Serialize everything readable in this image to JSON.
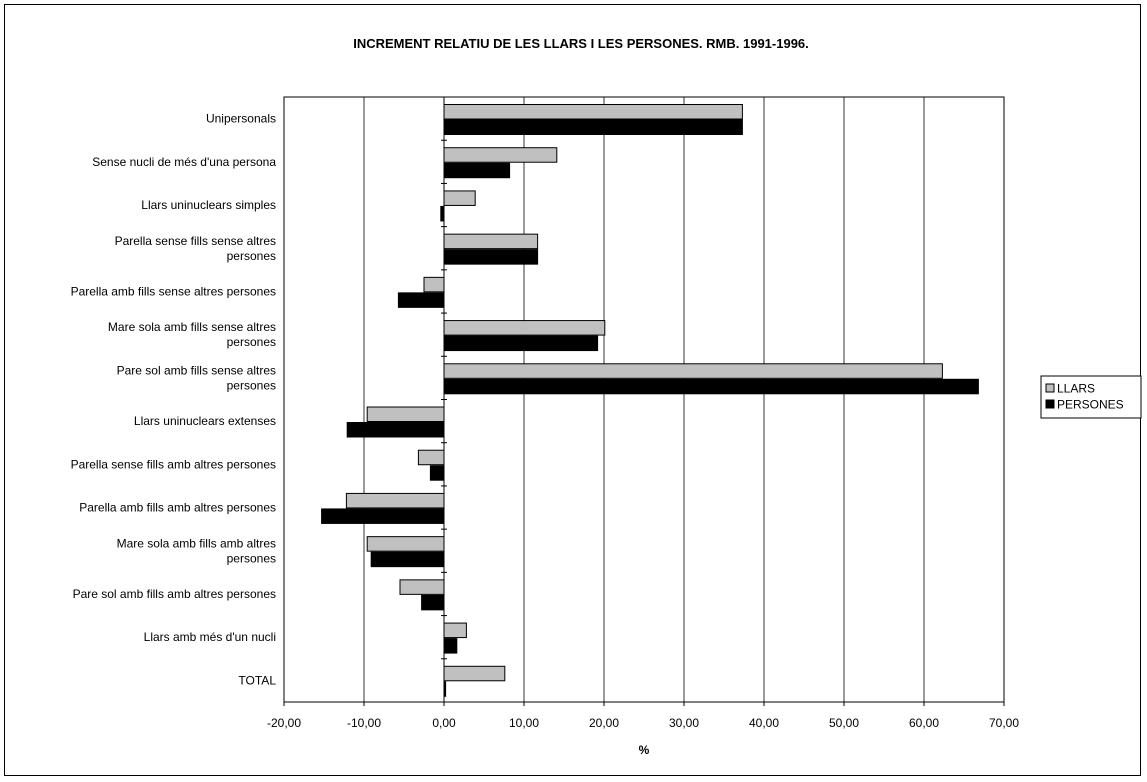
{
  "chart_data": {
    "type": "bar",
    "orientation": "horizontal",
    "title": "INCREMENT RELATIU DE LES LLARS I LES PERSONES. RMB. 1991-1996.",
    "xlabel": "%",
    "ylabel": "",
    "xlim": [
      -20,
      70
    ],
    "xticks": [
      -20,
      -10,
      0,
      10,
      20,
      30,
      40,
      50,
      60,
      70
    ],
    "xtick_labels": [
      "-20,00",
      "-10,00",
      "0,00",
      "10,00",
      "20,00",
      "30,00",
      "40,00",
      "50,00",
      "60,00",
      "70,00"
    ],
    "grid": "vertical",
    "legend_position": "right",
    "categories": [
      [
        "Unipersonals"
      ],
      [
        "Sense nucli de més d'una persona"
      ],
      [
        "Llars uninuclears simples"
      ],
      [
        "Parella sense fills sense altres",
        "persones"
      ],
      [
        "Parella amb fills sense altres persones"
      ],
      [
        "Mare sola amb fills sense altres",
        "persones"
      ],
      [
        "Pare sol amb fills sense altres",
        "persones"
      ],
      [
        "Llars uninuclears extenses"
      ],
      [
        "Parella sense fills amb altres persones"
      ],
      [
        "Parella amb fills amb altres persones"
      ],
      [
        "Mare sola amb fills amb altres",
        "persones"
      ],
      [
        "Pare sol amb fills amb altres persones"
      ],
      [
        "Llars amb més d'un nucli"
      ],
      [
        "TOTAL"
      ]
    ],
    "series": [
      {
        "name": "LLARS",
        "color": "#c0c0c0",
        "values": [
          37.3,
          14.1,
          3.9,
          11.7,
          -2.5,
          20.1,
          62.3,
          -9.6,
          -3.2,
          -12.2,
          -9.6,
          -5.5,
          2.8,
          7.6
        ]
      },
      {
        "name": "PERSONES",
        "color": "#000000",
        "values": [
          37.3,
          8.2,
          -0.4,
          11.7,
          -5.7,
          19.2,
          66.8,
          -12.1,
          -1.7,
          -15.3,
          -9.1,
          -2.8,
          1.6,
          0.2
        ]
      }
    ]
  }
}
